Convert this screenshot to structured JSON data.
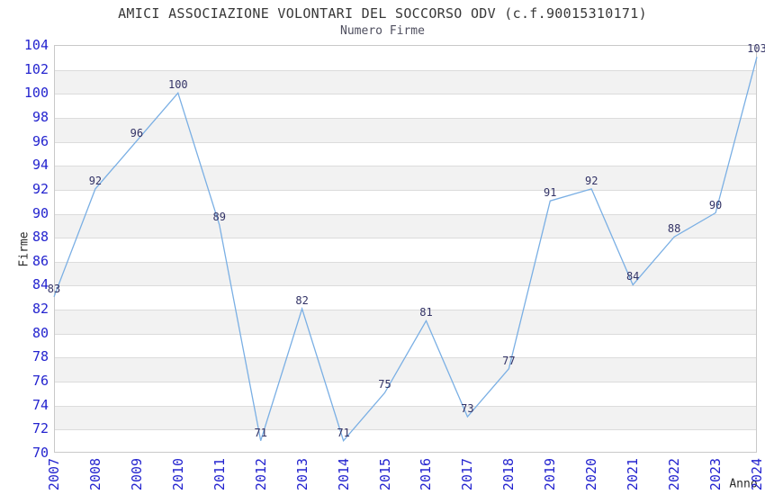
{
  "header": {
    "title": "AMICI ASSOCIAZIONE VOLONTARI DEL SOCCORSO ODV (c.f.90015310171)",
    "subtitle": "Numero Firme"
  },
  "chart_data": {
    "type": "line",
    "title": "AMICI ASSOCIAZIONE VOLONTARI DEL SOCCORSO ODV (c.f.90015310171)",
    "subtitle": "Numero Firme",
    "xlabel": "Anno",
    "ylabel": "Firme",
    "x": [
      2007,
      2008,
      2009,
      2010,
      2011,
      2012,
      2013,
      2014,
      2015,
      2016,
      2017,
      2018,
      2019,
      2020,
      2021,
      2022,
      2023,
      2024
    ],
    "series": [
      {
        "name": "Numero Firme",
        "values": [
          83,
          92,
          96,
          100,
          89,
          71,
          82,
          71,
          75,
          81,
          73,
          77,
          91,
          92,
          84,
          88,
          90,
          103
        ]
      }
    ],
    "ylim": [
      70,
      104
    ],
    "ytick_step": 2,
    "grid": "horizontal-only",
    "row_banding": true,
    "legend_position": "none",
    "data_labels_shown": true,
    "x_tick_rotation_deg": 90,
    "colors": {
      "line": "#7aafe4",
      "tick_labels": "#2424cf",
      "data_labels": "#333366",
      "band": "#f2f2f2",
      "grid": "#dcdcdc",
      "plot_border": "#c9c9c9",
      "title": "#383838",
      "subtitle": "#4f4f5f",
      "axis_titles": "#2a2a2a",
      "background": "#ffffff"
    }
  }
}
